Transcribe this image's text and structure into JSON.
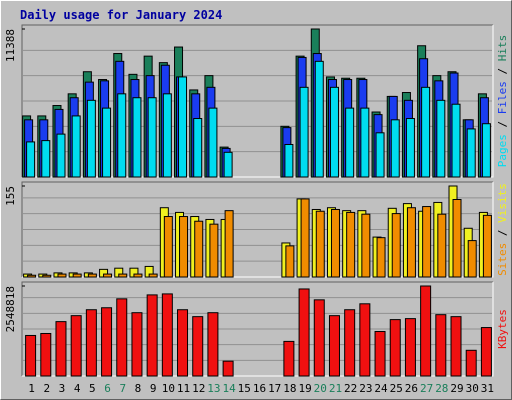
{
  "title": "Daily usage for January 2024",
  "legend_separator": "/",
  "chart_data": [
    {
      "type": "bar",
      "ylim": [
        0,
        11388
      ],
      "yticks": [
        11388
      ],
      "series": [
        {
          "name": "Hits",
          "color": "#1a7f5a",
          "values": [
            4700,
            4700,
            5500,
            6400,
            8100,
            7500,
            9500,
            7900,
            9300,
            8800,
            10000,
            6700,
            7800,
            2300,
            0,
            0,
            0,
            3900,
            9300,
            11388,
            7700,
            7600,
            7600,
            5000,
            6200,
            6500,
            10100,
            7800,
            8100,
            4400,
            6400
          ]
        },
        {
          "name": "Files",
          "color": "#1a3cf0",
          "values": [
            4400,
            4400,
            5200,
            6100,
            7300,
            7400,
            8900,
            7500,
            7800,
            8600,
            7700,
            6400,
            6900,
            2200,
            0,
            0,
            0,
            3800,
            9200,
            9500,
            7500,
            7500,
            7500,
            4800,
            6200,
            5900,
            9100,
            7400,
            8000,
            4400,
            6100
          ]
        },
        {
          "name": "Pages",
          "color": "#00dcf0",
          "values": [
            2700,
            2800,
            3300,
            4700,
            5900,
            5300,
            6400,
            6100,
            6100,
            6400,
            7700,
            4500,
            5300,
            1900,
            0,
            0,
            0,
            2500,
            6900,
            8900,
            6900,
            5300,
            5300,
            3400,
            4400,
            4500,
            6900,
            5900,
            5600,
            3700,
            4100
          ]
        }
      ]
    },
    {
      "type": "bar",
      "ylim": [
        0,
        155
      ],
      "yticks": [
        155
      ],
      "series": [
        {
          "name": "Visits",
          "color": "#f0f020",
          "values": [
            5,
            5,
            7,
            7,
            7,
            13,
            15,
            15,
            18,
            118,
            110,
            103,
            98,
            98,
            0,
            0,
            0,
            58,
            133,
            115,
            118,
            113,
            113,
            68,
            117,
            125,
            112,
            127,
            155,
            83,
            110
          ]
        },
        {
          "name": "Sites",
          "color": "#f08c00",
          "values": [
            3,
            3,
            5,
            5,
            5,
            5,
            5,
            5,
            5,
            103,
            103,
            95,
            90,
            113,
            0,
            0,
            0,
            53,
            133,
            112,
            115,
            110,
            107,
            67,
            108,
            118,
            120,
            107,
            132,
            62,
            105
          ]
        }
      ]
    },
    {
      "type": "bar",
      "ylim": [
        0,
        2548818
      ],
      "yticks": [
        2548818
      ],
      "categories": [
        "1",
        "2",
        "3",
        "4",
        "5",
        "6",
        "7",
        "8",
        "9",
        "10",
        "11",
        "12",
        "13",
        "14",
        "15",
        "16",
        "17",
        "18",
        "19",
        "20",
        "21",
        "22",
        "23",
        "24",
        "25",
        "26",
        "27",
        "28",
        "29",
        "30",
        "31"
      ],
      "category_colors": [
        "#000000",
        "#000000",
        "#000000",
        "#000000",
        "#000000",
        "#1a7f5a",
        "#1a7f5a",
        "#000000",
        "#000000",
        "#000000",
        "#000000",
        "#000000",
        "#1a7f5a",
        "#1a7f5a",
        "#000000",
        "#000000",
        "#000000",
        "#000000",
        "#000000",
        "#1a7f5a",
        "#1a7f5a",
        "#000000",
        "#000000",
        "#000000",
        "#000000",
        "#000000",
        "#1a7f5a",
        "#1a7f5a",
        "#000000",
        "#000000",
        "#000000"
      ],
      "series": [
        {
          "name": "KBytes",
          "color": "#f01010",
          "values": [
            1148000,
            1204000,
            1540000,
            1709000,
            1877000,
            1933000,
            2185000,
            1793000,
            2297000,
            2325000,
            1877000,
            1681000,
            1793000,
            420000,
            0,
            0,
            0,
            980000,
            2465000,
            2157000,
            1709000,
            1877000,
            2045000,
            1260000,
            1597000,
            1625000,
            2548818,
            1737000,
            1681000,
            728000,
            1372000
          ]
        }
      ]
    }
  ]
}
